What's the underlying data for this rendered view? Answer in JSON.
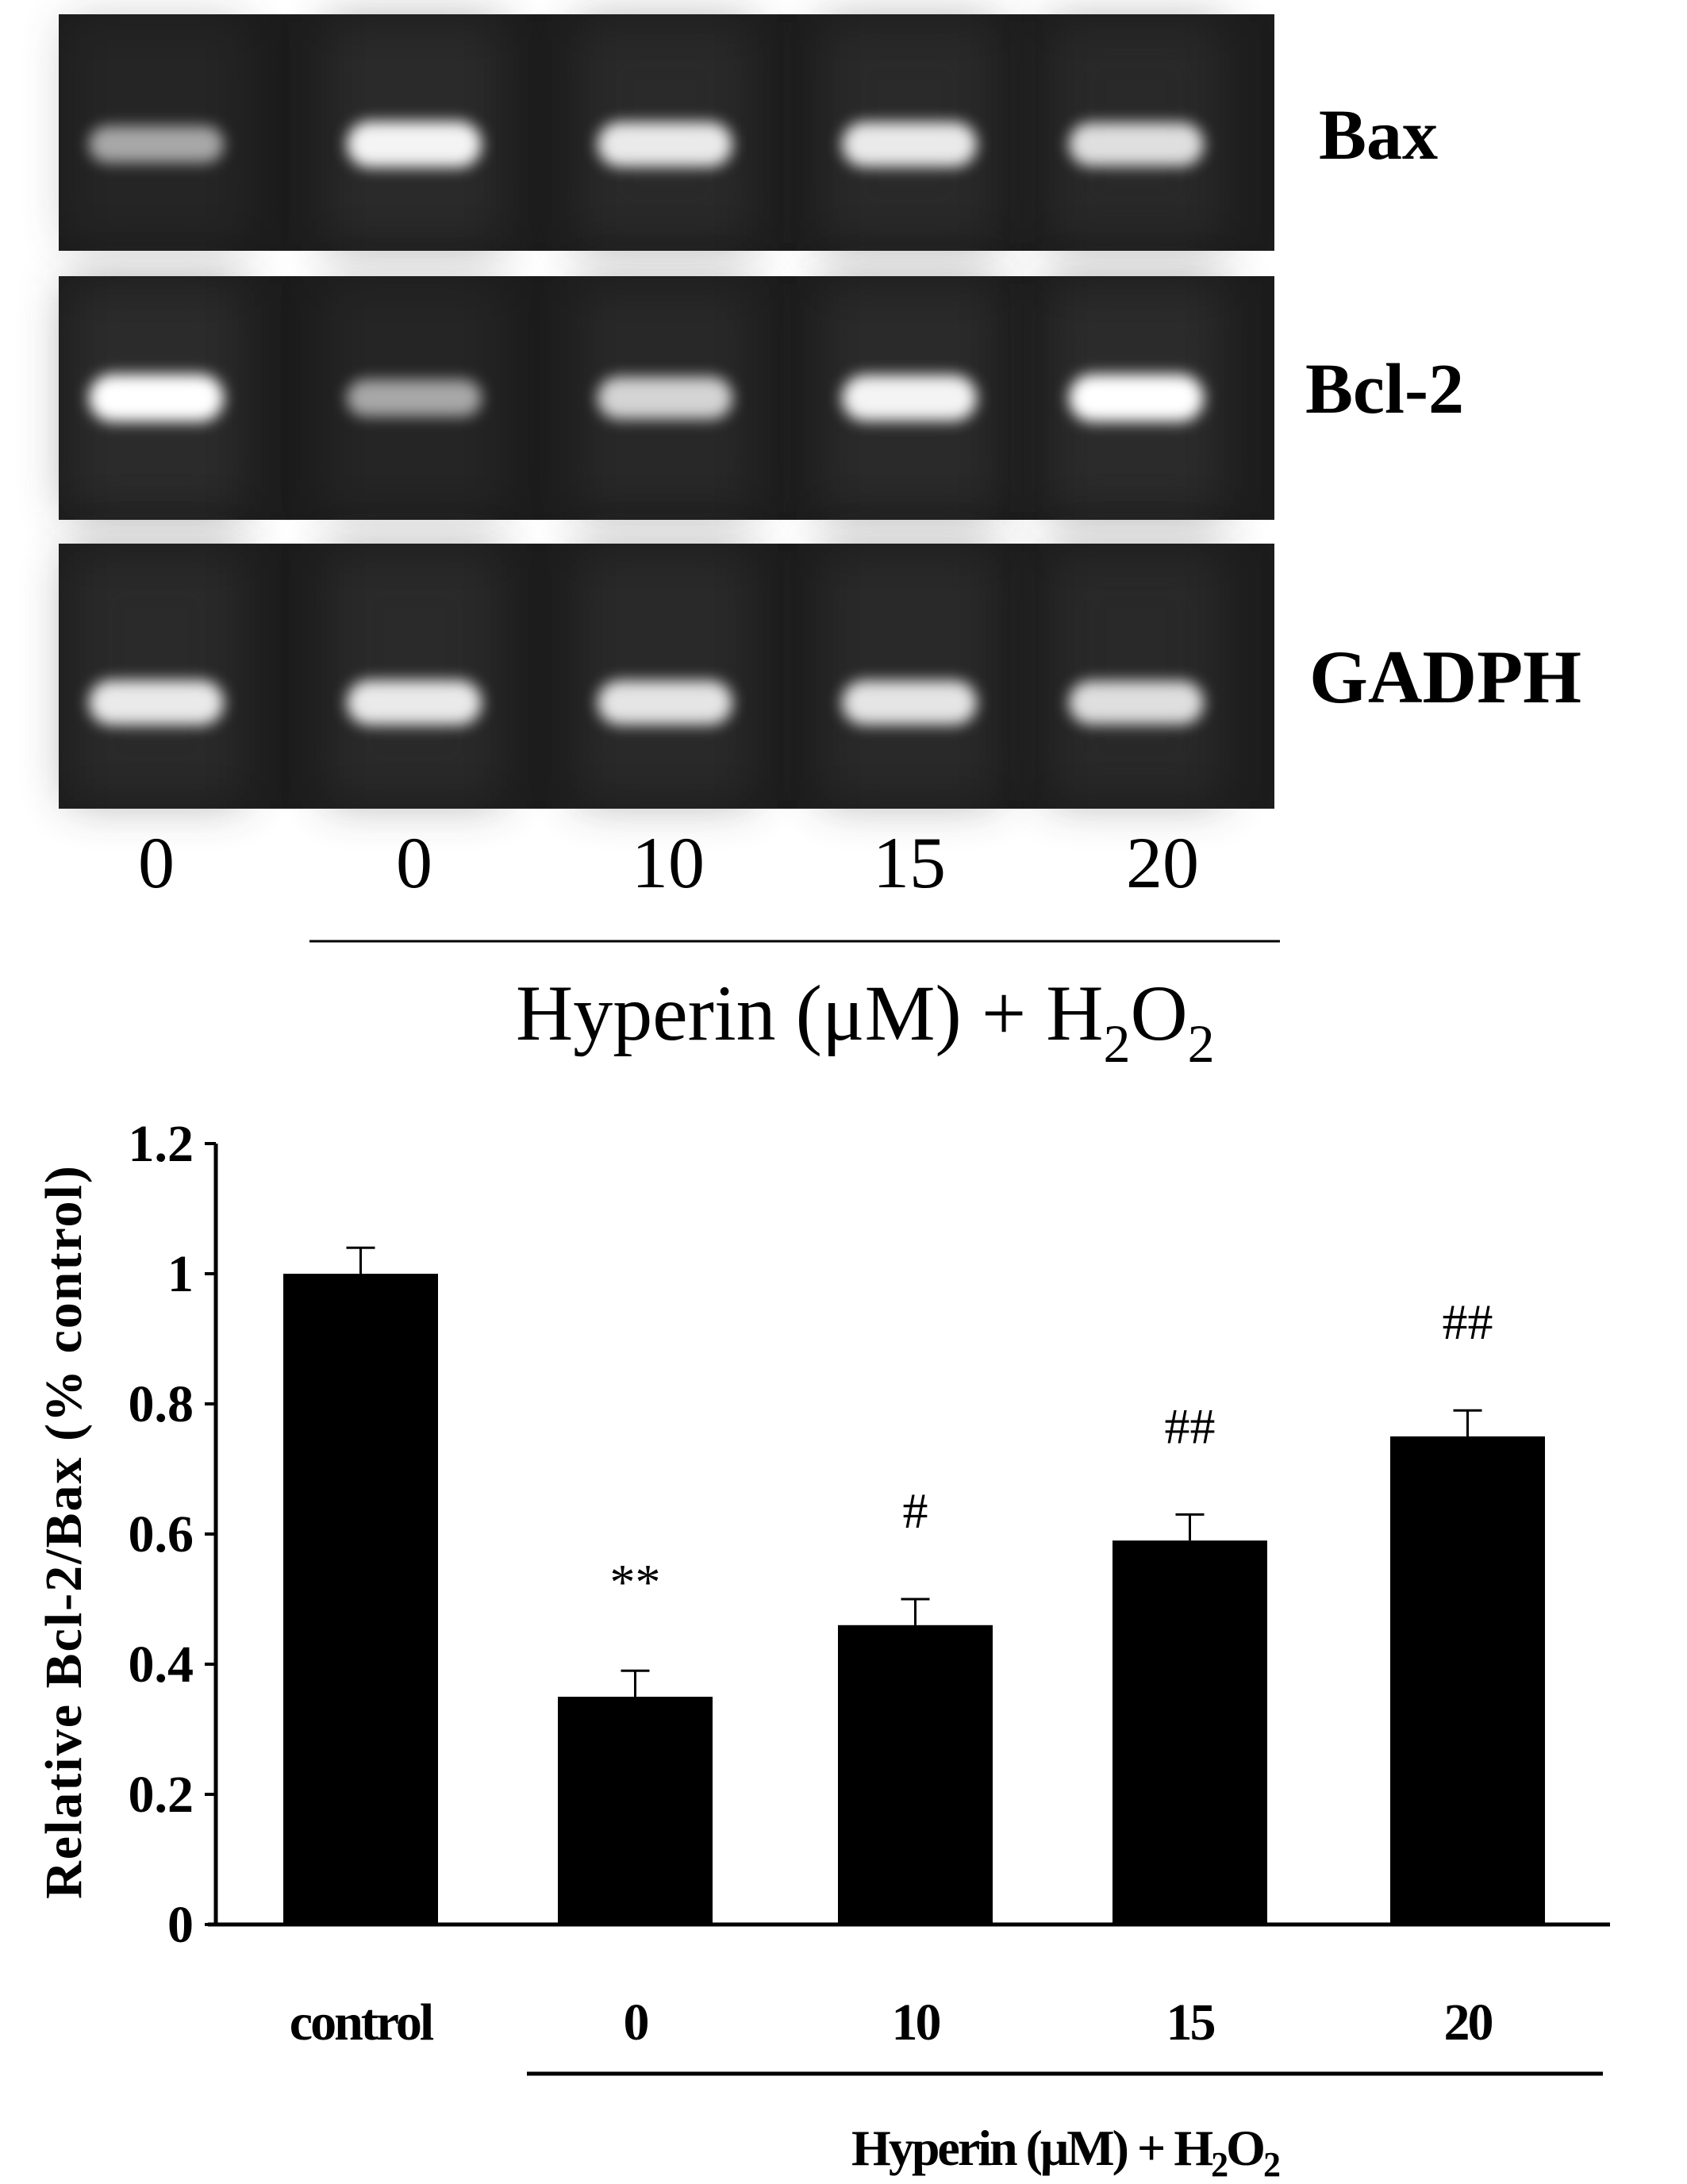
{
  "gel": {
    "rows": [
      "Bax",
      "Bcl-2",
      "GADPH"
    ],
    "lanes": [
      "0",
      "0",
      "10",
      "15",
      "20"
    ],
    "group_label": "Hyperin (μM) + H",
    "group_label_sub1": "2",
    "group_label_mid": "O",
    "group_label_sub2": "2"
  },
  "colors": {
    "bar": "#000000",
    "gel_background": "#1a1a1a",
    "band": "#ffffff"
  },
  "chart_data": {
    "type": "bar",
    "title": "",
    "ylabel": "Relative  Bcl-2/Bax (% control)",
    "xlabel": "Hyperin (μM) + H2O2",
    "xlabel_parts": {
      "main": "Hyperin (μM) + H",
      "sub1": "2",
      "mid": "O",
      "sub2": "2"
    },
    "categories": [
      "control",
      "0",
      "10",
      "15",
      "20"
    ],
    "values": [
      1.0,
      0.35,
      0.46,
      0.59,
      0.75
    ],
    "errors": [
      0.04,
      0.04,
      0.04,
      0.04,
      0.04
    ],
    "annotations": [
      "",
      "**",
      "#",
      "##",
      "##"
    ],
    "ylim": [
      0,
      1.2
    ],
    "yticks": [
      "0",
      "0.2",
      "0.4",
      "0.6",
      "0.8",
      "1",
      "1.2"
    ],
    "grid": false
  }
}
